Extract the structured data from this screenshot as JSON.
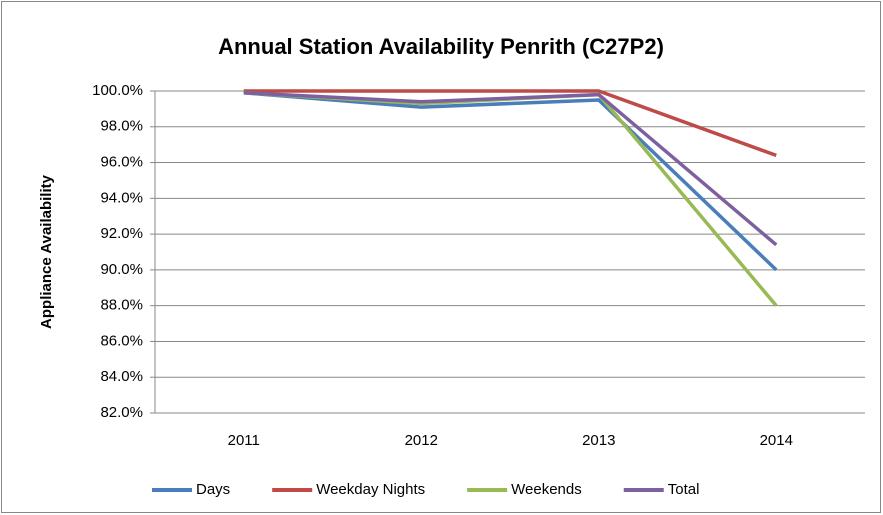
{
  "chart_data": {
    "type": "line",
    "title": "Annual Station Availability Penrith (C27P2)",
    "y_label": "Appliance Availability",
    "categories": [
      "2011",
      "2012",
      "2013",
      "2014"
    ],
    "series": [
      {
        "name": "Days",
        "color": "#4a7ebb",
        "values": [
          99.9,
          99.1,
          99.5,
          90.0
        ]
      },
      {
        "name": "Weekday Nights",
        "color": "#be4b48",
        "values": [
          100.0,
          100.0,
          100.0,
          96.4
        ]
      },
      {
        "name": "Weekends",
        "color": "#98b954",
        "values": [
          99.9,
          99.3,
          99.8,
          88.0
        ]
      },
      {
        "name": "Total",
        "color": "#7d60a0",
        "values": [
          99.9,
          99.4,
          99.8,
          91.4
        ]
      }
    ],
    "ylim": [
      82,
      100
    ],
    "yticks": [
      {
        "value": 82,
        "label": "82.0%"
      },
      {
        "value": 84,
        "label": "84.0%"
      },
      {
        "value": 86,
        "label": "86.0%"
      },
      {
        "value": 88,
        "label": "88.0%"
      },
      {
        "value": 90,
        "label": "90.0%"
      },
      {
        "value": 92,
        "label": "92.0%"
      },
      {
        "value": 94,
        "label": "94.0%"
      },
      {
        "value": 96,
        "label": "96.0%"
      },
      {
        "value": 98,
        "label": "98.0%"
      },
      {
        "value": 100,
        "label": "100.0%"
      }
    ],
    "grid": true,
    "legend": "bottom"
  }
}
